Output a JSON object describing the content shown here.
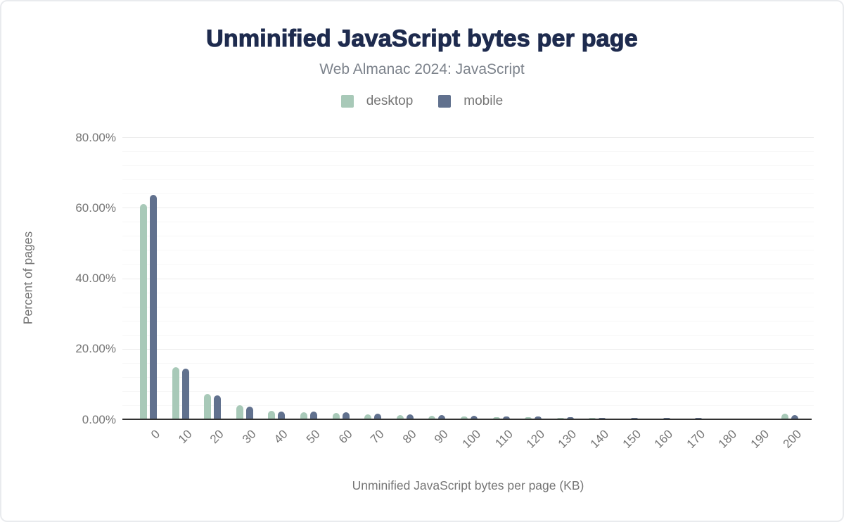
{
  "header": {
    "title": "Unminified JavaScript bytes per page",
    "subtitle": "Web Almanac 2024: JavaScript"
  },
  "chart_data": {
    "type": "bar",
    "title": "Unminified JavaScript bytes per page",
    "subtitle": "Web Almanac 2024: JavaScript",
    "xlabel": "Unminified JavaScript bytes per page (KB)",
    "ylabel": "Percent of pages",
    "categories": [
      "0",
      "10",
      "20",
      "30",
      "40",
      "50",
      "60",
      "70",
      "80",
      "90",
      "100",
      "110",
      "120",
      "130",
      "140",
      "150",
      "160",
      "170",
      "180",
      "190",
      "200"
    ],
    "series": [
      {
        "name": "desktop",
        "color": "#a8c9b8",
        "values": [
          61.0,
          14.8,
          7.2,
          4.0,
          2.4,
          2.0,
          1.7,
          1.4,
          1.2,
          1.0,
          0.85,
          0.7,
          0.55,
          0.45,
          0.35,
          0.3,
          0.28,
          0.25,
          0.22,
          0.2,
          1.6
        ]
      },
      {
        "name": "mobile",
        "color": "#61718e",
        "values": [
          63.6,
          14.3,
          6.7,
          3.5,
          2.2,
          2.1,
          1.9,
          1.6,
          1.4,
          1.2,
          1.05,
          0.85,
          0.75,
          0.55,
          0.45,
          0.4,
          0.35,
          0.33,
          0.3,
          0.28,
          1.2
        ]
      }
    ],
    "y_ticks": [
      "0.00%",
      "20.00%",
      "40.00%",
      "60.00%",
      "80.00%"
    ],
    "ylim": [
      0,
      80
    ],
    "y_major_step": 20,
    "y_minor_step": 4,
    "grid": true,
    "legend_position": "top"
  },
  "colors": {
    "title": "#1e2b4e",
    "subtitle": "#7d838c",
    "axis_text": "#757575",
    "axis_line": "#313131",
    "grid_minor": "#f7f7f7",
    "grid_major": "#ececec",
    "desktop": "#a8c9b8",
    "mobile": "#61718e"
  }
}
